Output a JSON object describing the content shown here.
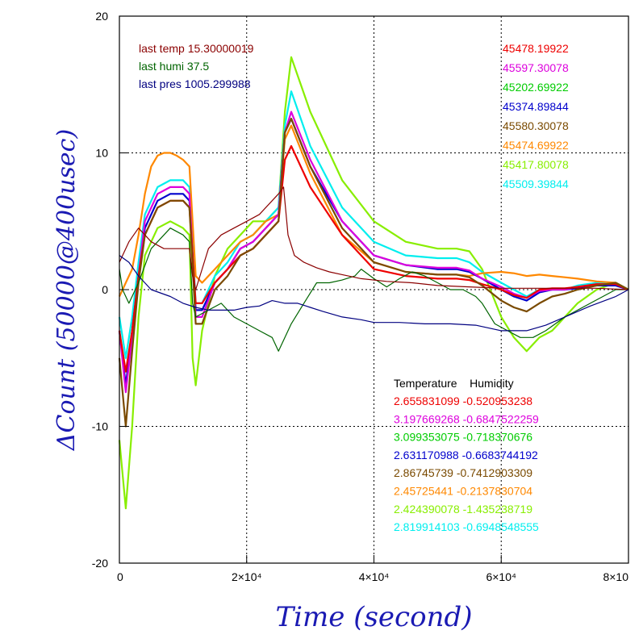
{
  "chart_data": {
    "type": "line",
    "xlabel": "Time (second)",
    "ylabel": "ΔCount (50000@400usec)",
    "xlim": [
      0,
      80000
    ],
    "ylim": [
      -20,
      20
    ],
    "x_ticks": [
      {
        "value": 0,
        "label": "0"
      },
      {
        "value": 20000,
        "label": "2×10⁴"
      },
      {
        "value": 40000,
        "label": "4×10⁴"
      },
      {
        "value": 60000,
        "label": "6×10⁴"
      },
      {
        "value": 80000,
        "label": "8×10"
      }
    ],
    "y_ticks": [
      {
        "value": 20,
        "label": "20"
      },
      {
        "value": 10,
        "label": "10"
      },
      {
        "value": 0,
        "label": "0"
      },
      {
        "value": -10,
        "label": "-10"
      },
      {
        "value": -20,
        "label": "-20"
      }
    ],
    "grid": true,
    "env_labels": [
      {
        "text": "last temp 15.30000019",
        "color": "#8b0000"
      },
      {
        "text": "last humi 37.5",
        "color": "#006400"
      },
      {
        "text": "last pres 1005.299988",
        "color": "#000080"
      }
    ],
    "counts_legend": [
      {
        "text": "45478.19922",
        "color": "#ee0000"
      },
      {
        "text": "45597.30078",
        "color": "#dd00dd"
      },
      {
        "text": "45202.69922",
        "color": "#00cc00"
      },
      {
        "text": "45374.89844",
        "color": "#0000cc"
      },
      {
        "text": "45580.30078",
        "color": "#7a4a00"
      },
      {
        "text": "45474.69922",
        "color": "#ff8800"
      },
      {
        "text": "45417.80078",
        "color": "#88ee00"
      },
      {
        "text": "45509.39844",
        "color": "#00eeee"
      }
    ],
    "coef_header": "Temperature    Humidity",
    "coef_rows": [
      {
        "text": "2.655831099 -0.520953238",
        "color": "#ee0000"
      },
      {
        "text": "3.197669268 -0.6847522259",
        "color": "#dd00dd"
      },
      {
        "text": "3.099353075 -0.718370676",
        "color": "#00cc00"
      },
      {
        "text": "2.631170988 -0.6683744192",
        "color": "#0000cc"
      },
      {
        "text": "2.86745739 -0.7412903309",
        "color": "#7a4a00"
      },
      {
        "text": "2.45725441 -0.2137830704",
        "color": "#ff8800"
      },
      {
        "text": "2.424390078 -1.435238719",
        "color": "#88ee00"
      },
      {
        "text": "2.819914103 -0.6948548555",
        "color": "#00eeee"
      }
    ],
    "series": [
      {
        "color": "#88ee00",
        "x": [
          0,
          1000,
          2000,
          3000,
          4000,
          6000,
          8000,
          10000,
          11000,
          11500,
          12000,
          13000,
          15000,
          17000,
          19000,
          21000,
          23000,
          25000,
          26000,
          27000,
          30000,
          35000,
          40000,
          45000,
          50000,
          53000,
          55000,
          57000,
          60000,
          62000,
          64000,
          66000,
          68000,
          70000,
          72000,
          75000,
          78000,
          80000
        ],
        "y": [
          -11,
          -16,
          -10,
          -2,
          2.5,
          4.5,
          5,
          4.5,
          4,
          -5,
          -7,
          -3,
          1,
          3,
          4,
          5,
          5,
          6,
          13,
          17,
          13,
          8,
          5,
          3.5,
          3,
          3,
          2.8,
          1.5,
          -2,
          -3.5,
          -4.5,
          -3.5,
          -3,
          -2,
          -1,
          0,
          0.5,
          0
        ]
      },
      {
        "color": "#00eeee",
        "x": [
          0,
          1000,
          2000,
          3000,
          4000,
          6000,
          8000,
          10000,
          11000,
          12000,
          13000,
          15000,
          17000,
          19000,
          21000,
          23000,
          25000,
          26000,
          27000,
          30000,
          35000,
          40000,
          45000,
          50000,
          53000,
          55000,
          57000,
          60000,
          62000,
          64000,
          66000,
          68000,
          70000,
          72000,
          75000,
          78000,
          80000
        ],
        "y": [
          -2,
          -5,
          -2,
          2,
          5.5,
          7.5,
          8,
          8,
          7.5,
          -1,
          -1,
          1,
          2,
          3.5,
          4,
          5,
          6,
          12,
          14.5,
          10.5,
          6,
          3.5,
          2.5,
          2.3,
          2.3,
          2,
          1.3,
          0.5,
          0,
          -0.5,
          0,
          0,
          0,
          0.3,
          0.5,
          0.5,
          0
        ]
      },
      {
        "color": "#ff8800",
        "x": [
          0,
          1000,
          2000,
          3000,
          4000,
          5000,
          6000,
          7000,
          8000,
          9000,
          10000,
          11000,
          12000,
          13000,
          15000,
          17000,
          19000,
          21000,
          23000,
          25000,
          26000,
          27000,
          30000,
          35000,
          40000,
          45000,
          50000,
          53000,
          55000,
          57000,
          60000,
          62000,
          64000,
          66000,
          68000,
          70000,
          72000,
          75000,
          78000,
          80000
        ],
        "y": [
          -0.5,
          0.5,
          1.5,
          4,
          7,
          9,
          9.8,
          10,
          10,
          9.8,
          9.5,
          9,
          1,
          0.5,
          1.5,
          2.5,
          3.5,
          4,
          5,
          5.5,
          11,
          12,
          8.5,
          4,
          2,
          1.3,
          1.1,
          1.1,
          1,
          1.2,
          1.3,
          1.2,
          1,
          1.1,
          1,
          0.9,
          0.8,
          0.6,
          0.5,
          0
        ]
      },
      {
        "color": "#0000cc",
        "x": [
          0,
          1000,
          2000,
          3000,
          4000,
          6000,
          8000,
          10000,
          11000,
          12000,
          13000,
          15000,
          17000,
          19000,
          21000,
          23000,
          25000,
          26000,
          27000,
          30000,
          35000,
          40000,
          45000,
          50000,
          53000,
          55000,
          57000,
          60000,
          62000,
          64000,
          66000,
          68000,
          70000,
          72000,
          75000,
          78000,
          80000
        ],
        "y": [
          -3,
          -7,
          -3,
          1,
          4.5,
          6.5,
          7,
          7,
          6.5,
          -1.5,
          -1.5,
          0.5,
          1.5,
          3,
          3.5,
          4.5,
          5.5,
          11.5,
          12.5,
          9,
          5,
          2.5,
          1.8,
          1.5,
          1.5,
          1.3,
          0.8,
          0,
          -0.5,
          -0.8,
          -0.2,
          0,
          0,
          0.1,
          0.3,
          0.3,
          0
        ]
      },
      {
        "color": "#dd00dd",
        "x": [
          0,
          1000,
          2000,
          3000,
          4000,
          6000,
          8000,
          10000,
          11000,
          12000,
          13000,
          15000,
          17000,
          19000,
          21000,
          23000,
          25000,
          26000,
          27000,
          30000,
          35000,
          40000,
          45000,
          50000,
          53000,
          55000,
          57000,
          60000,
          62000,
          64000,
          66000,
          68000,
          70000,
          72000,
          75000,
          78000,
          80000
        ],
        "y": [
          -3,
          -7.5,
          -3.5,
          1,
          5,
          7,
          7.5,
          7.5,
          7,
          -2,
          -2,
          0.5,
          1.5,
          3,
          3.5,
          4.5,
          5.5,
          11.5,
          13,
          9.5,
          5,
          2.5,
          1.8,
          1.6,
          1.6,
          1.4,
          0.8,
          0.2,
          -0.3,
          -0.6,
          -0.1,
          0,
          0,
          0.2,
          0.4,
          0.4,
          0
        ]
      },
      {
        "color": "#ee0000",
        "x": [
          0,
          1000,
          2000,
          3000,
          4000,
          6000,
          8000,
          10000,
          11000,
          12000,
          13000,
          15000,
          17000,
          19000,
          21000,
          23000,
          25000,
          26000,
          27000,
          30000,
          35000,
          40000,
          45000,
          50000,
          53000,
          55000,
          57000,
          60000,
          62000,
          64000,
          66000,
          68000,
          70000,
          72000,
          75000,
          78000,
          80000
        ],
        "y": [
          -3,
          -6,
          -3,
          1,
          4,
          6,
          6.5,
          6.5,
          6,
          -1,
          -1,
          0.5,
          1.5,
          2.5,
          3,
          4,
          5,
          9.5,
          10.5,
          7.5,
          4,
          1.5,
          1,
          0.8,
          0.8,
          0.7,
          0.4,
          0,
          -0.4,
          -0.6,
          0,
          0.1,
          0.1,
          0.2,
          0.4,
          0.4,
          0
        ]
      },
      {
        "color": "#7a4a00",
        "x": [
          0,
          1000,
          2000,
          3000,
          4000,
          6000,
          8000,
          10000,
          11000,
          12000,
          13000,
          15000,
          17000,
          19000,
          21000,
          23000,
          25000,
          26000,
          27000,
          30000,
          35000,
          40000,
          45000,
          50000,
          53000,
          55000,
          57000,
          60000,
          62000,
          64000,
          66000,
          68000,
          70000,
          72000,
          75000,
          78000,
          80000
        ],
        "y": [
          -5,
          -10,
          -4.5,
          0.5,
          4,
          6,
          6.5,
          6.5,
          6,
          -2.5,
          -2.5,
          0,
          1,
          2.5,
          3,
          4,
          5,
          11.5,
          12.5,
          9,
          4.5,
          2,
          1.3,
          1.1,
          1.1,
          0.9,
          0.3,
          -0.8,
          -1.3,
          -1.6,
          -1,
          -0.5,
          -0.3,
          0,
          0.3,
          0.5,
          0
        ]
      },
      {
        "color": "#006400",
        "x": [
          0,
          500,
          1500,
          3000,
          5000,
          8000,
          10000,
          11000,
          11500,
          12000,
          14000,
          16000,
          18000,
          20000,
          22000,
          24000,
          25000,
          27000,
          29000,
          31000,
          33000,
          35000,
          37000,
          38000,
          40000,
          42000,
          44000,
          46000,
          48000,
          50000,
          52000,
          54000,
          56000,
          57000,
          59000,
          61000,
          63000,
          65000,
          67000,
          70000,
          74000,
          78000,
          80000
        ],
        "y": [
          1.5,
          0,
          -1,
          0.5,
          3,
          4.5,
          4,
          3.5,
          -1,
          -2,
          -1.5,
          -1,
          -2,
          -2.5,
          -3,
          -3.5,
          -4.5,
          -2.5,
          -1,
          0.5,
          0.5,
          0.7,
          1,
          1.5,
          0.8,
          0.2,
          0.8,
          1.3,
          1,
          0.5,
          0,
          0,
          -0.5,
          -1,
          -2.5,
          -3,
          -3.5,
          -3.5,
          -3,
          -2,
          -1,
          0,
          0
        ]
      },
      {
        "color": "#8b0000",
        "x": [
          0,
          1500,
          3000,
          4000,
          5000,
          7000,
          9000,
          10000,
          11000,
          11500,
          12000,
          14000,
          16000,
          18000,
          20000,
          22000,
          24000,
          25000,
          25800,
          26500,
          27500,
          29000,
          31000,
          33000,
          35000,
          38000,
          42000,
          46000,
          50000,
          55000,
          60000,
          65000,
          70000,
          75000,
          80000
        ],
        "y": [
          2,
          3.5,
          4.5,
          4,
          3.5,
          3,
          3,
          3,
          3,
          1,
          0,
          3,
          4,
          4.5,
          5,
          5.5,
          6.5,
          7,
          7.5,
          4,
          2.5,
          2,
          1.6,
          1.3,
          1.1,
          0.8,
          0.6,
          0.5,
          0.3,
          0.2,
          0.1,
          0.1,
          0.1,
          0.1,
          0
        ]
      },
      {
        "color": "#000080",
        "x": [
          0,
          1500,
          3000,
          5000,
          8000,
          10000,
          12000,
          14000,
          16000,
          18000,
          20000,
          22000,
          24000,
          26000,
          28000,
          30000,
          32000,
          35000,
          38000,
          40000,
          44000,
          48000,
          52000,
          56000,
          60000,
          64000,
          67000,
          70000,
          74000,
          78000,
          80000
        ],
        "y": [
          2.5,
          2,
          1,
          0,
          -0.5,
          -1,
          -1.3,
          -1.5,
          -1.5,
          -1.5,
          -1.3,
          -1.2,
          -0.8,
          -1,
          -1,
          -1.3,
          -1.6,
          -2,
          -2.2,
          -2.4,
          -2.4,
          -2.5,
          -2.5,
          -2.6,
          -3,
          -3,
          -2.6,
          -2,
          -1.2,
          -0.5,
          0
        ]
      }
    ]
  }
}
